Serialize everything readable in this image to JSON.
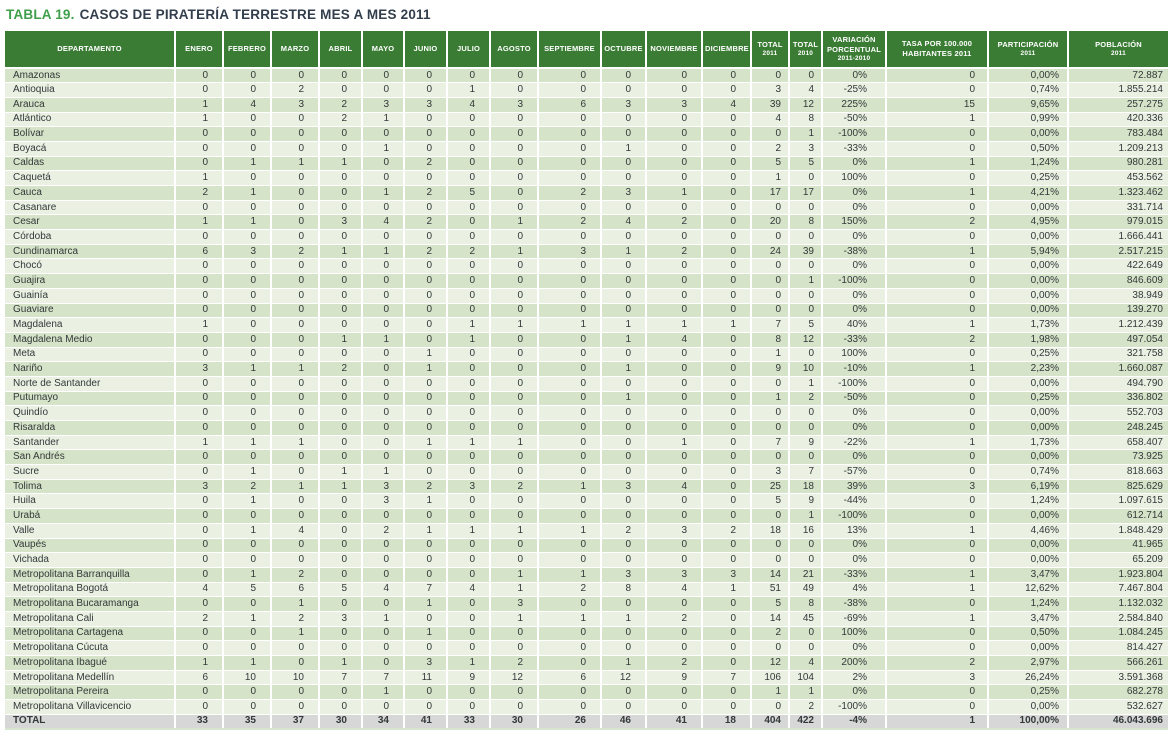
{
  "title": {
    "prefix": "TABLA 19.",
    "text": "CASOS DE PIRATERÍA TERRESTRE MES A MES 2011"
  },
  "colors": {
    "header_bg": "#3b7c35",
    "row_odd": "#d5e4c8",
    "row_even": "#eaf1e2",
    "total_row_bg": "#d7d7d7",
    "title_accent": "#3f9e49",
    "title_text": "#333e4c"
  },
  "table": {
    "headers": [
      {
        "label": "DEPARTAMENTO"
      },
      {
        "label": "ENERO"
      },
      {
        "label": "FEBRERO"
      },
      {
        "label": "MARZO"
      },
      {
        "label": "ABRIL"
      },
      {
        "label": "MAYO"
      },
      {
        "label": "JUNIO"
      },
      {
        "label": "JULIO"
      },
      {
        "label": "AGOSTO"
      },
      {
        "label": "SEPTIEMBRE"
      },
      {
        "label": "OCTUBRE"
      },
      {
        "label": "NOVIEMBRE"
      },
      {
        "label": "DICIEMBRE"
      },
      {
        "label": "TOTAL",
        "sub": "2011"
      },
      {
        "label": "TOTAL",
        "sub": "2010"
      },
      {
        "label": "VARIACIÓN\nPORCENTUAL",
        "sub": "2011-2010"
      },
      {
        "label": "TASA POR 100.000\nHABITANTES 2011"
      },
      {
        "label": "PARTICIPACIÓN",
        "sub": "2011"
      },
      {
        "label": "POBLACIÓN",
        "sub": "2011"
      }
    ],
    "rows": [
      [
        "Amazonas",
        "0",
        "0",
        "0",
        "0",
        "0",
        "0",
        "0",
        "0",
        "0",
        "0",
        "0",
        "0",
        "0",
        "0",
        "0%",
        "0",
        "0,00%",
        "72.887"
      ],
      [
        "Antioquia",
        "0",
        "0",
        "2",
        "0",
        "0",
        "0",
        "1",
        "0",
        "0",
        "0",
        "0",
        "0",
        "3",
        "4",
        "-25%",
        "0",
        "0,74%",
        "1.855.214"
      ],
      [
        "Arauca",
        "1",
        "4",
        "3",
        "2",
        "3",
        "3",
        "4",
        "3",
        "6",
        "3",
        "3",
        "4",
        "39",
        "12",
        "225%",
        "15",
        "9,65%",
        "257.275"
      ],
      [
        "Atlántico",
        "1",
        "0",
        "0",
        "2",
        "1",
        "0",
        "0",
        "0",
        "0",
        "0",
        "0",
        "0",
        "4",
        "8",
        "-50%",
        "1",
        "0,99%",
        "420.336"
      ],
      [
        "Bolívar",
        "0",
        "0",
        "0",
        "0",
        "0",
        "0",
        "0",
        "0",
        "0",
        "0",
        "0",
        "0",
        "0",
        "1",
        "-100%",
        "0",
        "0,00%",
        "783.484"
      ],
      [
        "Boyacá",
        "0",
        "0",
        "0",
        "0",
        "1",
        "0",
        "0",
        "0",
        "0",
        "1",
        "0",
        "0",
        "2",
        "3",
        "-33%",
        "0",
        "0,50%",
        "1.209.213"
      ],
      [
        "Caldas",
        "0",
        "1",
        "1",
        "1",
        "0",
        "2",
        "0",
        "0",
        "0",
        "0",
        "0",
        "0",
        "5",
        "5",
        "0%",
        "1",
        "1,24%",
        "980.281"
      ],
      [
        "Caquetá",
        "1",
        "0",
        "0",
        "0",
        "0",
        "0",
        "0",
        "0",
        "0",
        "0",
        "0",
        "0",
        "1",
        "0",
        "100%",
        "0",
        "0,25%",
        "453.562"
      ],
      [
        "Cauca",
        "2",
        "1",
        "0",
        "0",
        "1",
        "2",
        "5",
        "0",
        "2",
        "3",
        "1",
        "0",
        "17",
        "17",
        "0%",
        "1",
        "4,21%",
        "1.323.462"
      ],
      [
        "Casanare",
        "0",
        "0",
        "0",
        "0",
        "0",
        "0",
        "0",
        "0",
        "0",
        "0",
        "0",
        "0",
        "0",
        "0",
        "0%",
        "0",
        "0,00%",
        "331.714"
      ],
      [
        "Cesar",
        "1",
        "1",
        "0",
        "3",
        "4",
        "2",
        "0",
        "1",
        "2",
        "4",
        "2",
        "0",
        "20",
        "8",
        "150%",
        "2",
        "4,95%",
        "979.015"
      ],
      [
        "Córdoba",
        "0",
        "0",
        "0",
        "0",
        "0",
        "0",
        "0",
        "0",
        "0",
        "0",
        "0",
        "0",
        "0",
        "0",
        "0%",
        "0",
        "0,00%",
        "1.666.441"
      ],
      [
        "Cundinamarca",
        "6",
        "3",
        "2",
        "1",
        "1",
        "2",
        "2",
        "1",
        "3",
        "1",
        "2",
        "0",
        "24",
        "39",
        "-38%",
        "1",
        "5,94%",
        "2.517.215"
      ],
      [
        "Chocó",
        "0",
        "0",
        "0",
        "0",
        "0",
        "0",
        "0",
        "0",
        "0",
        "0",
        "0",
        "0",
        "0",
        "0",
        "0%",
        "0",
        "0,00%",
        "422.649"
      ],
      [
        "Guajira",
        "0",
        "0",
        "0",
        "0",
        "0",
        "0",
        "0",
        "0",
        "0",
        "0",
        "0",
        "0",
        "0",
        "1",
        "-100%",
        "0",
        "0,00%",
        "846.609"
      ],
      [
        "Guainía",
        "0",
        "0",
        "0",
        "0",
        "0",
        "0",
        "0",
        "0",
        "0",
        "0",
        "0",
        "0",
        "0",
        "0",
        "0%",
        "0",
        "0,00%",
        "38.949"
      ],
      [
        "Guaviare",
        "0",
        "0",
        "0",
        "0",
        "0",
        "0",
        "0",
        "0",
        "0",
        "0",
        "0",
        "0",
        "0",
        "0",
        "0%",
        "0",
        "0,00%",
        "139.270"
      ],
      [
        "Magdalena",
        "1",
        "0",
        "0",
        "0",
        "0",
        "0",
        "1",
        "1",
        "1",
        "1",
        "1",
        "1",
        "7",
        "5",
        "40%",
        "1",
        "1,73%",
        "1.212.439"
      ],
      [
        "Magdalena Medio",
        "0",
        "0",
        "0",
        "1",
        "1",
        "0",
        "1",
        "0",
        "0",
        "1",
        "4",
        "0",
        "8",
        "12",
        "-33%",
        "2",
        "1,98%",
        "497.054"
      ],
      [
        "Meta",
        "0",
        "0",
        "0",
        "0",
        "0",
        "1",
        "0",
        "0",
        "0",
        "0",
        "0",
        "0",
        "1",
        "0",
        "100%",
        "0",
        "0,25%",
        "321.758"
      ],
      [
        "Nariño",
        "3",
        "1",
        "1",
        "2",
        "0",
        "1",
        "0",
        "0",
        "0",
        "1",
        "0",
        "0",
        "9",
        "10",
        "-10%",
        "1",
        "2,23%",
        "1.660.087"
      ],
      [
        "Norte de Santander",
        "0",
        "0",
        "0",
        "0",
        "0",
        "0",
        "0",
        "0",
        "0",
        "0",
        "0",
        "0",
        "0",
        "1",
        "-100%",
        "0",
        "0,00%",
        "494.790"
      ],
      [
        "Putumayo",
        "0",
        "0",
        "0",
        "0",
        "0",
        "0",
        "0",
        "0",
        "0",
        "1",
        "0",
        "0",
        "1",
        "2",
        "-50%",
        "0",
        "0,25%",
        "336.802"
      ],
      [
        "Quindío",
        "0",
        "0",
        "0",
        "0",
        "0",
        "0",
        "0",
        "0",
        "0",
        "0",
        "0",
        "0",
        "0",
        "0",
        "0%",
        "0",
        "0,00%",
        "552.703"
      ],
      [
        "Risaralda",
        "0",
        "0",
        "0",
        "0",
        "0",
        "0",
        "0",
        "0",
        "0",
        "0",
        "0",
        "0",
        "0",
        "0",
        "0%",
        "0",
        "0,00%",
        "248.245"
      ],
      [
        "Santander",
        "1",
        "1",
        "1",
        "0",
        "0",
        "1",
        "1",
        "1",
        "0",
        "0",
        "1",
        "0",
        "7",
        "9",
        "-22%",
        "1",
        "1,73%",
        "658.407"
      ],
      [
        "San Andrés",
        "0",
        "0",
        "0",
        "0",
        "0",
        "0",
        "0",
        "0",
        "0",
        "0",
        "0",
        "0",
        "0",
        "0",
        "0%",
        "0",
        "0,00%",
        "73.925"
      ],
      [
        "Sucre",
        "0",
        "1",
        "0",
        "1",
        "1",
        "0",
        "0",
        "0",
        "0",
        "0",
        "0",
        "0",
        "3",
        "7",
        "-57%",
        "0",
        "0,74%",
        "818.663"
      ],
      [
        "Tolima",
        "3",
        "2",
        "1",
        "1",
        "3",
        "2",
        "3",
        "2",
        "1",
        "3",
        "4",
        "0",
        "25",
        "18",
        "39%",
        "3",
        "6,19%",
        "825.629"
      ],
      [
        "Huila",
        "0",
        "1",
        "0",
        "0",
        "3",
        "1",
        "0",
        "0",
        "0",
        "0",
        "0",
        "0",
        "5",
        "9",
        "-44%",
        "0",
        "1,24%",
        "1.097.615"
      ],
      [
        "Urabá",
        "0",
        "0",
        "0",
        "0",
        "0",
        "0",
        "0",
        "0",
        "0",
        "0",
        "0",
        "0",
        "0",
        "1",
        "-100%",
        "0",
        "0,00%",
        "612.714"
      ],
      [
        "Valle",
        "0",
        "1",
        "4",
        "0",
        "2",
        "1",
        "1",
        "1",
        "1",
        "2",
        "3",
        "2",
        "18",
        "16",
        "13%",
        "1",
        "4,46%",
        "1.848.429"
      ],
      [
        "Vaupés",
        "0",
        "0",
        "0",
        "0",
        "0",
        "0",
        "0",
        "0",
        "0",
        "0",
        "0",
        "0",
        "0",
        "0",
        "0%",
        "0",
        "0,00%",
        "41.965"
      ],
      [
        "Vichada",
        "0",
        "0",
        "0",
        "0",
        "0",
        "0",
        "0",
        "0",
        "0",
        "0",
        "0",
        "0",
        "0",
        "0",
        "0%",
        "0",
        "0,00%",
        "65.209"
      ],
      [
        "Metropolitana Barranquilla",
        "0",
        "1",
        "2",
        "0",
        "0",
        "0",
        "0",
        "1",
        "1",
        "3",
        "3",
        "3",
        "14",
        "21",
        "-33%",
        "1",
        "3,47%",
        "1.923.804"
      ],
      [
        "Metropolitana Bogotá",
        "4",
        "5",
        "6",
        "5",
        "4",
        "7",
        "4",
        "1",
        "2",
        "8",
        "4",
        "1",
        "51",
        "49",
        "4%",
        "1",
        "12,62%",
        "7.467.804"
      ],
      [
        "Metropolitana Bucaramanga",
        "0",
        "0",
        "1",
        "0",
        "0",
        "1",
        "0",
        "3",
        "0",
        "0",
        "0",
        "0",
        "5",
        "8",
        "-38%",
        "0",
        "1,24%",
        "1.132.032"
      ],
      [
        "Metropolitana Cali",
        "2",
        "1",
        "2",
        "3",
        "1",
        "0",
        "0",
        "1",
        "1",
        "1",
        "2",
        "0",
        "14",
        "45",
        "-69%",
        "1",
        "3,47%",
        "2.584.840"
      ],
      [
        "Metropolitana Cartagena",
        "0",
        "0",
        "1",
        "0",
        "0",
        "1",
        "0",
        "0",
        "0",
        "0",
        "0",
        "0",
        "2",
        "0",
        "100%",
        "0",
        "0,50%",
        "1.084.245"
      ],
      [
        "Metropolitana Cúcuta",
        "0",
        "0",
        "0",
        "0",
        "0",
        "0",
        "0",
        "0",
        "0",
        "0",
        "0",
        "0",
        "0",
        "0",
        "0%",
        "0",
        "0,00%",
        "814.427"
      ],
      [
        "Metropolitana Ibagué",
        "1",
        "1",
        "0",
        "1",
        "0",
        "3",
        "1",
        "2",
        "0",
        "1",
        "2",
        "0",
        "12",
        "4",
        "200%",
        "2",
        "2,97%",
        "566.261"
      ],
      [
        "Metropolitana Medellín",
        "6",
        "10",
        "10",
        "7",
        "7",
        "11",
        "9",
        "12",
        "6",
        "12",
        "9",
        "7",
        "106",
        "104",
        "2%",
        "3",
        "26,24%",
        "3.591.368"
      ],
      [
        "Metropolitana Pereira",
        "0",
        "0",
        "0",
        "0",
        "1",
        "0",
        "0",
        "0",
        "0",
        "0",
        "0",
        "0",
        "1",
        "1",
        "0%",
        "0",
        "0,25%",
        "682.278"
      ],
      [
        "Metropolitana Villavicencio",
        "0",
        "0",
        "0",
        "0",
        "0",
        "0",
        "0",
        "0",
        "0",
        "0",
        "0",
        "0",
        "0",
        "2",
        "-100%",
        "0",
        "0,00%",
        "532.627"
      ]
    ],
    "total_row": [
      "TOTAL",
      "33",
      "35",
      "37",
      "30",
      "34",
      "41",
      "33",
      "30",
      "26",
      "46",
      "41",
      "18",
      "404",
      "422",
      "-4%",
      "1",
      "100,00%",
      "46.043.696"
    ]
  }
}
